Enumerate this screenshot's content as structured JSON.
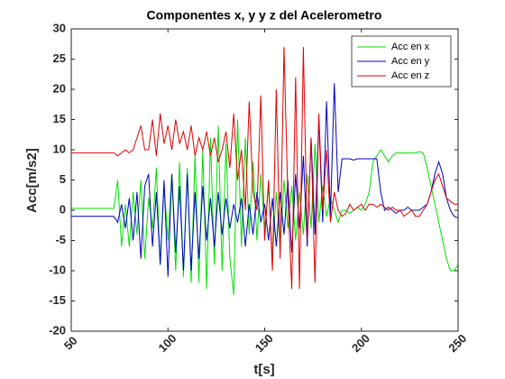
{
  "chart_data": {
    "type": "line",
    "title": "Componentes x, y y z del Acelerometro",
    "xlabel": "t[s]",
    "ylabel": "Acc[m/s2]",
    "x": [
      50,
      52,
      54,
      56,
      58,
      60,
      62,
      64,
      66,
      68,
      70,
      72,
      74,
      76,
      78,
      80,
      82,
      84,
      86,
      88,
      90,
      92,
      94,
      96,
      98,
      100,
      102,
      104,
      106,
      108,
      110,
      112,
      114,
      116,
      118,
      120,
      122,
      124,
      126,
      128,
      130,
      132,
      134,
      136,
      138,
      140,
      142,
      144,
      146,
      148,
      150,
      152,
      154,
      156,
      158,
      160,
      162,
      164,
      166,
      168,
      170,
      172,
      174,
      176,
      178,
      180,
      182,
      184,
      186,
      188,
      190,
      192,
      194,
      196,
      198,
      200,
      202,
      204,
      206,
      208,
      210,
      212,
      214,
      216,
      218,
      220,
      222,
      224,
      226,
      228,
      230,
      232,
      234,
      236,
      238,
      240,
      242,
      244,
      246,
      248,
      250
    ],
    "series": [
      {
        "name": "Acc en x",
        "color": "#00e000",
        "values": [
          0.3,
          0.3,
          0.3,
          0.3,
          0.3,
          0.3,
          0.3,
          0.3,
          0.3,
          0.3,
          0.3,
          0.3,
          5,
          -6,
          1,
          -6,
          3,
          -4,
          5,
          -8,
          2,
          -3,
          7,
          -9,
          4,
          -5,
          6,
          -10,
          8,
          -11,
          7,
          -12,
          9,
          -12,
          10,
          -13,
          12,
          -9,
          14,
          -10,
          11,
          -8,
          -14,
          15,
          -6,
          12,
          -4,
          8,
          -5,
          6,
          -3,
          4,
          -8,
          3,
          -6,
          5,
          -3,
          4,
          -5,
          3,
          -4,
          6,
          -3,
          11,
          -2,
          4,
          -1,
          2,
          0,
          -2,
          0,
          0,
          -0.5,
          0,
          0.5,
          0,
          1,
          3,
          8,
          9,
          10,
          9,
          8,
          9,
          9.5,
          9.5,
          9.5,
          9.5,
          9.5,
          9.5,
          9.7,
          9.5,
          7,
          4,
          1,
          -2,
          -5,
          -8,
          -10,
          -10,
          -9
        ]
      },
      {
        "name": "Acc en y",
        "color": "#0000c8",
        "values": [
          -1,
          -1,
          -1,
          -1,
          -1,
          -1,
          -1,
          -1,
          -1,
          -1,
          -1,
          -1,
          -2,
          1,
          -3,
          2,
          -5,
          3,
          -8,
          4,
          6,
          -6,
          3,
          -9,
          5,
          -11,
          6,
          -7,
          4,
          -10,
          6,
          -10,
          3,
          -8,
          4,
          -5,
          2,
          -6,
          3,
          -4,
          2,
          -3,
          1,
          -2,
          2,
          -6,
          1,
          -4,
          3,
          -2,
          1,
          -5,
          2,
          -6,
          3,
          -4,
          5,
          -7,
          6,
          -3,
          9,
          -6,
          12,
          -4,
          15,
          -2,
          18,
          -1,
          21,
          3,
          8.5,
          8.5,
          8.5,
          8.3,
          8.5,
          8.5,
          8.5,
          8.5,
          8.5,
          8.5,
          3,
          0,
          0.5,
          0,
          -0.5,
          0,
          0,
          0.5,
          0,
          0,
          0,
          0.5,
          1,
          3,
          6,
          8,
          6,
          2,
          0,
          -1,
          -1.3
        ]
      },
      {
        "name": "Acc en z",
        "color": "#e00000",
        "values": [
          9.5,
          9.5,
          9.5,
          9.5,
          9.5,
          9.5,
          9.5,
          9.5,
          9.5,
          9.5,
          9.5,
          9.5,
          9,
          9.5,
          10,
          9.5,
          10,
          12,
          14,
          10,
          10,
          15,
          9,
          16,
          11,
          14,
          10,
          15,
          11,
          13,
          10,
          14,
          9,
          12,
          10,
          13,
          9,
          12,
          8,
          10,
          13,
          7,
          16,
          5,
          10,
          0,
          18,
          3,
          0,
          19,
          -5,
          5,
          -10,
          20,
          -8,
          27,
          2,
          -13,
          22,
          -13,
          27,
          -5,
          12,
          -12,
          16,
          0,
          10,
          -2,
          3,
          0,
          -1,
          -0.5,
          1,
          0,
          0.5,
          1,
          0,
          1,
          1,
          0.5,
          1,
          0.5,
          0,
          0.5,
          0,
          0,
          -1,
          -0.5,
          0,
          -1,
          -1,
          0,
          1,
          3,
          5,
          6,
          4,
          2,
          1.5,
          1,
          1
        ]
      }
    ],
    "xlim": [
      50,
      250
    ],
    "xticks": [
      50,
      100,
      150,
      200,
      250
    ],
    "ylim": [
      -20,
      30
    ],
    "yticks": [
      -20,
      -15,
      -10,
      -5,
      0,
      5,
      10,
      15,
      20,
      25,
      30
    ],
    "legend": "northeast"
  }
}
